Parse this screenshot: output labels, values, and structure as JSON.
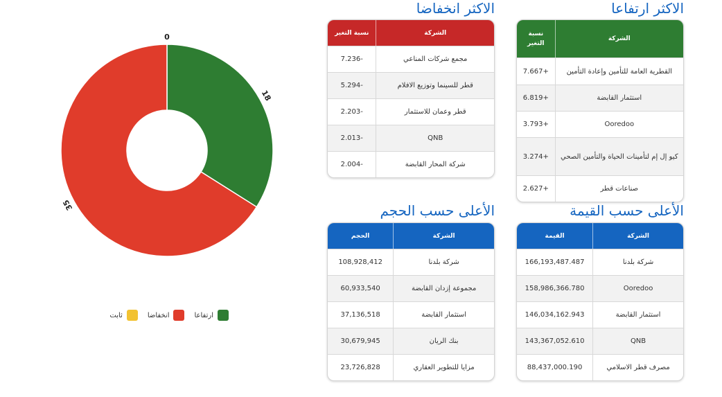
{
  "colors": {
    "up": "#2e7d32",
    "down": "#e03c2b",
    "flat": "#f2c231",
    "title": "#1565c0"
  },
  "top_gainers": {
    "title": "الاكثر ارتفاعا",
    "col_company": "الشركة",
    "col_change": "نسبة التغير",
    "rows": [
      {
        "company": "القطرية العامة للتأمين وإعادة التأمين",
        "value": "+7.667"
      },
      {
        "company": "استثمار القابضة",
        "value": "+6.819"
      },
      {
        "company": "Ooredoo",
        "value": "+3.793"
      },
      {
        "company": "كيو إل إم لتأمينات الحياة والتأمين الصحي",
        "value": "+3.274"
      },
      {
        "company": "صناعات قطر",
        "value": "+2.627"
      }
    ]
  },
  "top_losers": {
    "title": "الاكثر انخفاضا",
    "col_company": "الشركة",
    "col_change": "نسبة التغير",
    "rows": [
      {
        "company": "مجمع شركات المناعي",
        "value": "-7.236"
      },
      {
        "company": "قطر للسينما وتوزيع الافلام",
        "value": "-5.294"
      },
      {
        "company": "قطر وعمان للاستثمار",
        "value": "-2.203"
      },
      {
        "company": "QNB",
        "value": "-2.013"
      },
      {
        "company": "شركة المحار القابضة",
        "value": "-2.004"
      }
    ]
  },
  "top_by_value": {
    "title": "الأعلى حسب القيمة",
    "col_company": "الشركة",
    "col_value": "القيمة",
    "rows": [
      {
        "company": "شركة بلدنا",
        "value": "166,193,487.487"
      },
      {
        "company": "Ooredoo",
        "value": "158,986,366.780"
      },
      {
        "company": "استثمار القابضة",
        "value": "146,034,162.943"
      },
      {
        "company": "QNB",
        "value": "143,367,052.610"
      },
      {
        "company": "مصرف قطر الاسلامي",
        "value": "88,437,000.190"
      }
    ]
  },
  "top_by_volume": {
    "title": "الأعلى حسب الحجم",
    "col_company": "الشركة",
    "col_value": "الحجم",
    "rows": [
      {
        "company": "شركة بلدنا",
        "value": "108,928,412"
      },
      {
        "company": "مجموعة إزدان القابضة",
        "value": "60,933,540"
      },
      {
        "company": "استثمار القابضة",
        "value": "37,136,518"
      },
      {
        "company": "بنك الريان",
        "value": "30,679,945"
      },
      {
        "company": "مزايا للتطوير العقاري",
        "value": "23,726,828"
      }
    ]
  },
  "legend": {
    "up_label": "ارتفاعا",
    "down_label": "انخفاضا",
    "flat_label": "ثابت"
  },
  "chart_data": {
    "type": "pie",
    "donut": true,
    "series": [
      {
        "name": "ارتفاعا",
        "value": 18
      },
      {
        "name": "انخفاضا",
        "value": 35
      },
      {
        "name": "ثابت",
        "value": 0
      }
    ],
    "data_labels": [
      "18",
      "35",
      "0"
    ],
    "legend_position": "bottom"
  }
}
